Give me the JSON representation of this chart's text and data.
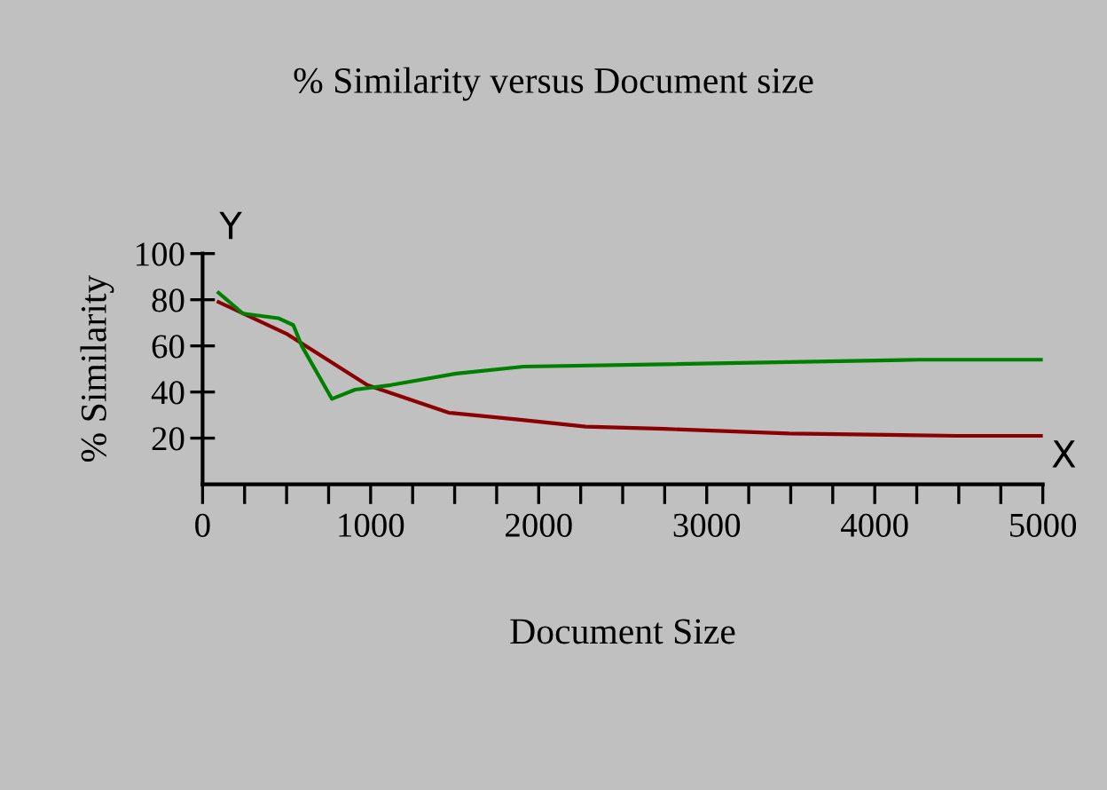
{
  "chart_data": {
    "type": "line",
    "title": "% Similarity versus Document size",
    "xlabel": "Document Size",
    "ylabel": "% Similarity",
    "annotations": [
      "Y",
      "X"
    ],
    "xlim": [
      0,
      5000
    ],
    "ylim": [
      0,
      100
    ],
    "xticks": [
      0,
      {
        "value": 250,
        "label": null
      },
      {
        "value": 500,
        "label": null
      },
      {
        "value": 750,
        "label": null
      },
      1000,
      {
        "value": 1250,
        "label": null
      },
      {
        "value": 1500,
        "label": null
      },
      {
        "value": 1750,
        "label": null
      },
      2000,
      {
        "value": 2250,
        "label": null
      },
      {
        "value": 2500,
        "label": null
      },
      {
        "value": 2750,
        "label": null
      },
      3000,
      {
        "value": 3250,
        "label": null
      },
      {
        "value": 3500,
        "label": null
      },
      {
        "value": 3750,
        "label": null
      },
      4000,
      {
        "value": 4250,
        "label": null
      },
      {
        "value": 4500,
        "label": null
      },
      {
        "value": 4750,
        "label": null
      },
      5000
    ],
    "yticks": [
      20,
      40,
      60,
      80,
      100
    ],
    "grid": false,
    "legend": false,
    "marker": "none",
    "line_style": "solid",
    "series": [
      {
        "color": "#8b0000",
        "x": [
          95,
          506,
          980,
          1466,
          1890,
          2280,
          2750,
          3490,
          4490,
          5000
        ],
        "values": [
          79,
          65,
          43,
          31,
          28,
          25,
          24,
          22,
          21,
          21
        ]
      },
      {
        "color": "#008000",
        "x": [
          95,
          240,
          450,
          540,
          590,
          770,
          907,
          1120,
          1510,
          1910,
          2750,
          4260,
          5000
        ],
        "values": [
          83,
          74,
          72,
          69,
          60,
          37,
          41,
          43,
          48,
          51,
          52,
          54,
          54
        ]
      }
    ]
  }
}
